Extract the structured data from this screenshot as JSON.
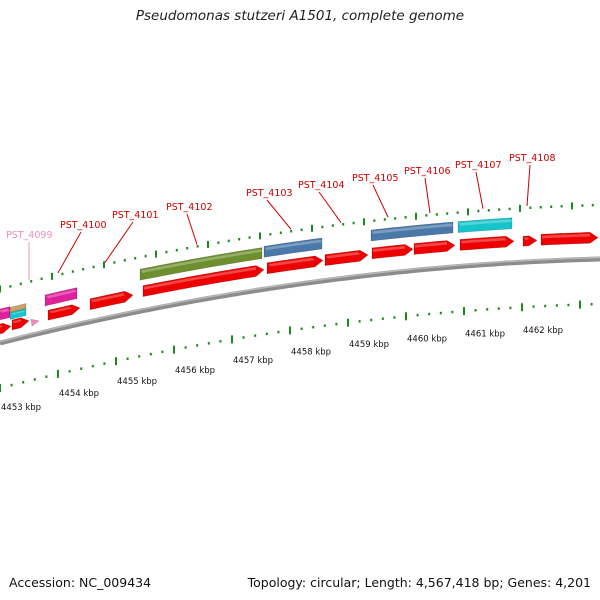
{
  "title": "Pseudomonas stutzeri A1501, complete genome",
  "footer": {
    "accession": "Accession: NC_009434",
    "summary": "Topology: circular; Length: 4,567,418 bp; Genes: 4,201"
  },
  "colors": {
    "gene_label": "#cc0000",
    "gene_label_faded": "#f08cc0",
    "tick": "#1a8a1a",
    "backbone": "#8c8c8c",
    "forward_cds": "#ee0000",
    "olive_feature": "#6e8f2e",
    "steel_blue_feature": "#4a78a8",
    "cyan_feature": "#16c4cc",
    "magenta_feature": "#e0209a",
    "tan_feature": "#c8a060"
  },
  "scale_labels": [
    "4453 kbp",
    "4454 kbp",
    "4455 kbp",
    "4456 kbp",
    "4457 kbp",
    "4458 kbp",
    "4459 kbp",
    "4460 kbp",
    "4461 kbp",
    "4462 kbp"
  ],
  "gene_labels": [
    "PST_4099",
    "PST_4100",
    "PST_4101",
    "PST_4102",
    "PST_4103",
    "PST_4104",
    "PST_4105",
    "PST_4106",
    "PST_4107",
    "PST_4108"
  ]
}
